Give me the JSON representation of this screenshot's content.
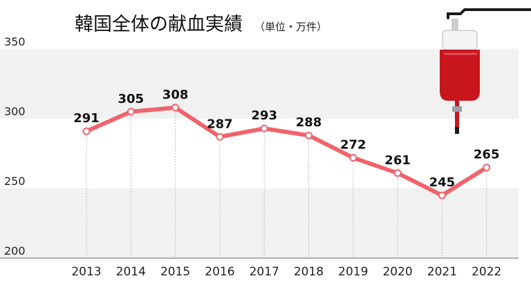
{
  "chart_data": {
    "type": "line",
    "title": "韓国全体の献血実績",
    "unit_label": "（単位・万件）",
    "xlabel": "",
    "ylabel": "",
    "categories": [
      "2013",
      "2014",
      "2015",
      "2016",
      "2017",
      "2018",
      "2019",
      "2020",
      "2021",
      "2022"
    ],
    "series": [
      {
        "values": [
          291,
          305,
          308,
          287,
          293,
          288,
          272,
          261,
          245,
          265
        ]
      }
    ],
    "data_labels": [
      "291",
      "305",
      "308",
      "287",
      "293",
      "288",
      "272",
      "261",
      "245",
      "265"
    ],
    "yticks": [
      "350",
      "300",
      "250",
      "200"
    ],
    "ylim": [
      200,
      350
    ],
    "grid": "horizontal bands",
    "legend": "none",
    "colors": {
      "line": "#f0636b",
      "band": "#f1f1f1",
      "axis": "#999999",
      "blood_bag": "#c8161d"
    }
  }
}
